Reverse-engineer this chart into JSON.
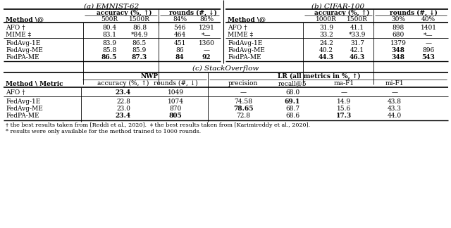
{
  "title_a": "(a) EMNIST-62",
  "title_b": "(b) CIFAR-100",
  "title_c": "(c) StackOverflow",
  "footnote1": "† the best results taken from [Reddi et al., 2020].  ‡ the best results taken from [Karimireddy et al., 2020].",
  "footnote2": "* results were only available for the method trained to 1000 rounds.",
  "a_rows": [
    [
      "AFO †",
      "80.4",
      "86.8",
      "546",
      "1291",
      false,
      false,
      false,
      false
    ],
    [
      "MIME ‡",
      "83.1",
      "*84.9",
      "464",
      "*—",
      false,
      false,
      false,
      false
    ],
    [
      "FedAvg-1E",
      "83.9",
      "86.5",
      "451",
      "1360",
      false,
      false,
      false,
      false
    ],
    [
      "FedAvg-ME",
      "85.8",
      "85.9",
      "86",
      "—",
      false,
      false,
      false,
      false
    ],
    [
      "FedPA-ME",
      "86.5",
      "87.3",
      "84",
      "92",
      true,
      true,
      true,
      true
    ]
  ],
  "b_rows": [
    [
      "AFO †",
      "31.9",
      "41.1",
      "898",
      "1401",
      false,
      false,
      false,
      false
    ],
    [
      "MIME ‡",
      "33.2",
      "*33.9",
      "680",
      "*—",
      false,
      false,
      false,
      false
    ],
    [
      "FedAvg-1E",
      "24.2",
      "31.7",
      "1379",
      "—",
      false,
      false,
      false,
      false
    ],
    [
      "FedAvg-ME",
      "40.2",
      "42.1",
      "348",
      "896",
      false,
      false,
      true,
      false
    ],
    [
      "FedPA-ME",
      "44.3",
      "46.3",
      "348",
      "543",
      true,
      true,
      true,
      true
    ]
  ],
  "c_rows": [
    [
      "AFO †",
      "23.4",
      "1049",
      "—",
      "68.0",
      "—",
      "—",
      true,
      false,
      false,
      false,
      false,
      false
    ],
    [
      "FedAvg-1E",
      "22.8",
      "1074",
      "74.58",
      "69.1",
      "14.9",
      "43.8",
      false,
      false,
      false,
      true,
      false,
      false
    ],
    [
      "FedAvg-ME",
      "23.0",
      "870",
      "78.65",
      "68.7",
      "15.6",
      "43.3",
      false,
      false,
      true,
      false,
      false,
      false
    ],
    [
      "FedPA-ME",
      "23.4",
      "805",
      "72.8",
      "68.6",
      "17.3",
      "44.0",
      true,
      true,
      false,
      false,
      true,
      false
    ]
  ]
}
